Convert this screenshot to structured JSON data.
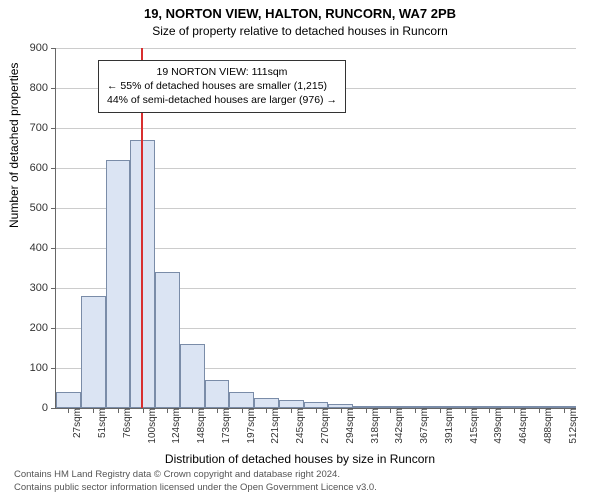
{
  "chart": {
    "type": "histogram",
    "title_main": "19, NORTON VIEW, HALTON, RUNCORN, WA7 2PB",
    "title_sub": "Size of property relative to detached houses in Runcorn",
    "title_fontsize": 13,
    "sub_fontsize": 12,
    "background_color": "#ffffff",
    "grid_color": "#cccccc",
    "bar_fill": "#dbe4f3",
    "bar_stroke": "#7a8ca8",
    "marker_color": "#d82f2f",
    "axis_color": "#666666",
    "y": {
      "min": 0,
      "max": 900,
      "step": 100,
      "label": "Number of detached properties"
    },
    "x": {
      "label": "Distribution of detached houses by size in Runcorn",
      "ticks": [
        "27sqm",
        "51sqm",
        "76sqm",
        "100sqm",
        "124sqm",
        "148sqm",
        "173sqm",
        "197sqm",
        "221sqm",
        "245sqm",
        "270sqm",
        "294sqm",
        "318sqm",
        "342sqm",
        "367sqm",
        "391sqm",
        "415sqm",
        "439sqm",
        "464sqm",
        "488sqm",
        "512sqm"
      ]
    },
    "bars": [
      40,
      280,
      620,
      670,
      340,
      160,
      70,
      40,
      25,
      20,
      15,
      10,
      5,
      5,
      5,
      5,
      5,
      5,
      5,
      5,
      5
    ],
    "marker": {
      "bin_index": 3,
      "fraction_in_bin": 0.45
    },
    "annotation": {
      "line1": "19 NORTON VIEW: 111sqm",
      "line2": "← 55% of detached houses are smaller (1,215)",
      "line3": "44% of semi-detached houses are larger (976) →"
    },
    "footer": {
      "line1": "Contains HM Land Registry data © Crown copyright and database right 2024.",
      "line2": "Contains public sector information licensed under the Open Government Licence v3.0."
    }
  }
}
